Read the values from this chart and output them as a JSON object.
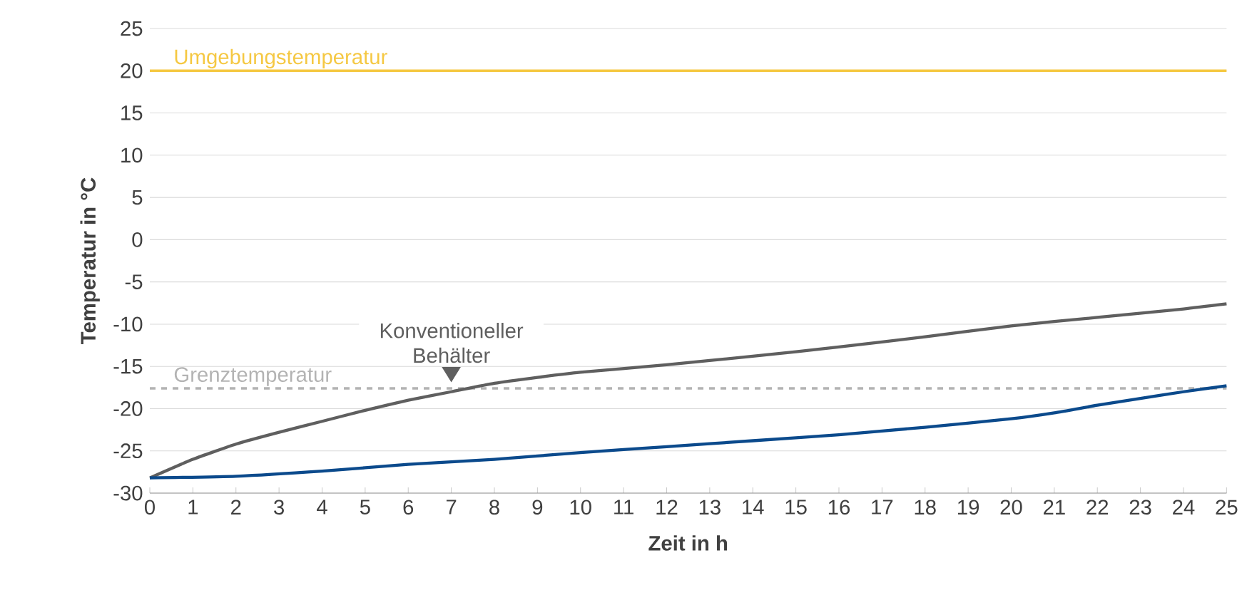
{
  "chart_data": {
    "type": "line",
    "xlabel": "Zeit in h",
    "ylabel": "Temperatur in °C",
    "xlim": [
      0,
      25
    ],
    "xticks": [
      0,
      1,
      2,
      3,
      4,
      5,
      6,
      7,
      8,
      9,
      10,
      11,
      12,
      13,
      14,
      15,
      16,
      17,
      18,
      19,
      20,
      21,
      22,
      23,
      24,
      25
    ],
    "ylim": [
      -30,
      25
    ],
    "yticks": [
      -30,
      -25,
      -20,
      -15,
      -10,
      -5,
      0,
      5,
      10,
      15,
      20,
      25
    ],
    "grid": "y",
    "line_style": "solid",
    "series": [
      {
        "name": "Konventioneller Behälter",
        "color": "#5f5f5f",
        "x": [
          0,
          1,
          2,
          3,
          4,
          5,
          6,
          7,
          8,
          9,
          10,
          12,
          14,
          16,
          18,
          20,
          22,
          24,
          25
        ],
        "values": [
          -28.2,
          -26,
          -24.2,
          -22.8,
          -21.5,
          -20.2,
          -19,
          -18,
          -17,
          -16.3,
          -15.7,
          -14.8,
          -13.8,
          -12.7,
          -11.5,
          -10.2,
          -9.2,
          -8.2,
          -7.6
        ]
      },
      {
        "color": "#0b4a8c",
        "x": [
          0,
          2,
          4,
          6,
          8,
          10,
          12,
          14,
          16,
          18,
          20,
          21,
          22,
          23,
          24,
          25
        ],
        "values": [
          -28.2,
          -28,
          -27.4,
          -26.6,
          -26,
          -25.2,
          -24.5,
          -23.8,
          -23.1,
          -22.2,
          -21.2,
          -20.5,
          -19.6,
          -18.8,
          -18,
          -17.3
        ]
      }
    ],
    "ref_lines": [
      {
        "axis": "y",
        "value": 20,
        "label": "Umgebungstemperatur",
        "color": "#f5c842",
        "line_style": "solid"
      },
      {
        "axis": "y",
        "value": -17.6,
        "label": "Grenztemperatur",
        "color": "#b3b3b3",
        "line_style": "dashed"
      }
    ]
  }
}
